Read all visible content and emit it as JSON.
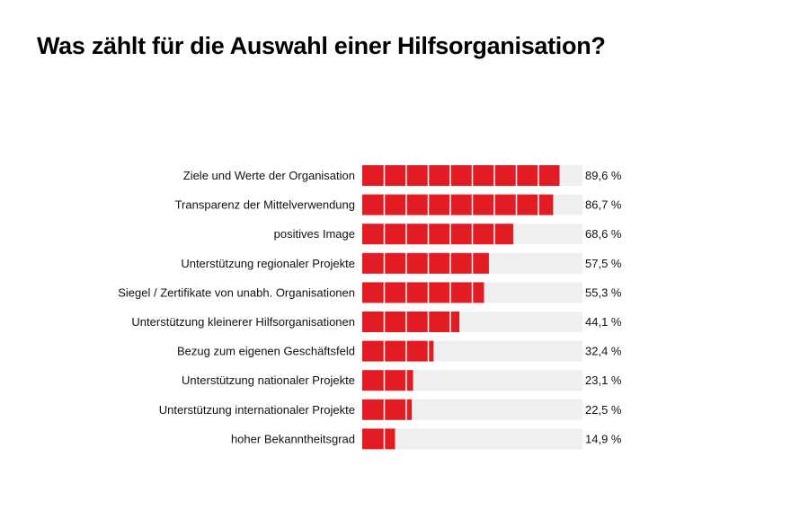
{
  "colors": {
    "bar": "#e31b23",
    "track": "#efefef",
    "segment_divider": "#ffffff",
    "text": "#111111"
  },
  "chart_data": {
    "type": "bar",
    "orientation": "horizontal",
    "title": "Was zählt für die Auswahl einer Hilfsorganisation?",
    "xlabel": "",
    "ylabel": "",
    "unit": "%",
    "xlim": [
      0,
      100
    ],
    "segment_step": 10,
    "grid": false,
    "legend": "none",
    "categories": [
      "Ziele und Werte der Organisation",
      "Transparenz der Mittelverwendung",
      "positives Image",
      "Unterstützung regionaler Projekte",
      "Siegel / Zertifikate von unabh. Organisationen",
      "Unterstützung kleinerer Hilfsorganisationen",
      "Bezug zum eigenen Geschäftsfeld",
      "Unterstützung nationaler Projekte",
      "Unterstützung internationaler Projekte",
      "hoher Bekanntheitsgrad"
    ],
    "values": [
      89.6,
      86.7,
      68.6,
      57.5,
      55.3,
      44.1,
      32.4,
      23.1,
      22.5,
      14.9
    ],
    "value_labels": [
      "89,6 %",
      "86,7 %",
      "68,6 %",
      "57,5 %",
      "55,3 %",
      "44,1 %",
      "32,4 %",
      "23,1 %",
      "22,5 %",
      "14,9 %"
    ]
  }
}
